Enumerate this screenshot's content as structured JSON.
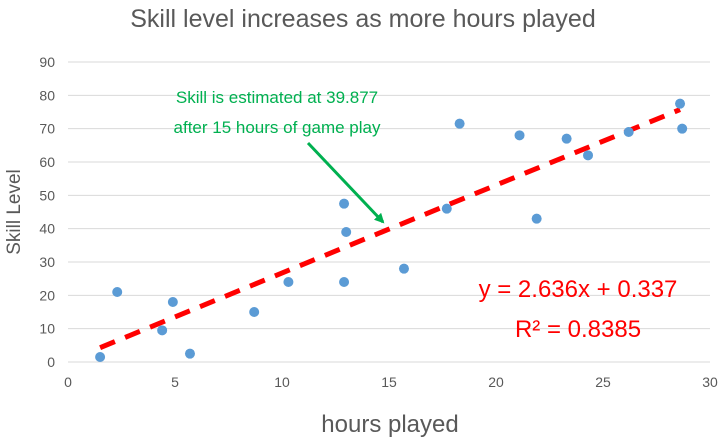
{
  "chart_data": {
    "type": "scatter",
    "title": "Skill level increases as more hours played",
    "xlabel": "hours played",
    "ylabel": "Skill Level",
    "xlim": [
      0,
      30
    ],
    "ylim": [
      0,
      90
    ],
    "x_ticks": [
      0,
      5,
      10,
      15,
      20,
      25,
      30
    ],
    "y_ticks": [
      0,
      10,
      20,
      30,
      40,
      50,
      60,
      70,
      80,
      90
    ],
    "grid": true,
    "series": [
      {
        "points": [
          {
            "x": 1.5,
            "y": 1.5
          },
          {
            "x": 2.3,
            "y": 21
          },
          {
            "x": 4.4,
            "y": 9.5
          },
          {
            "x": 4.9,
            "y": 18
          },
          {
            "x": 5.7,
            "y": 2.5
          },
          {
            "x": 8.7,
            "y": 15
          },
          {
            "x": 10.3,
            "y": 24
          },
          {
            "x": 12.9,
            "y": 47.5
          },
          {
            "x": 12.9,
            "y": 24
          },
          {
            "x": 13.0,
            "y": 39
          },
          {
            "x": 15.7,
            "y": 28
          },
          {
            "x": 17.7,
            "y": 46
          },
          {
            "x": 18.3,
            "y": 71.5
          },
          {
            "x": 21.1,
            "y": 68
          },
          {
            "x": 21.9,
            "y": 43
          },
          {
            "x": 23.3,
            "y": 67
          },
          {
            "x": 24.3,
            "y": 62
          },
          {
            "x": 26.2,
            "y": 69
          },
          {
            "x": 28.6,
            "y": 77.5
          },
          {
            "x": 28.7,
            "y": 70
          }
        ],
        "color": "#5b9bd5"
      }
    ],
    "trendline": {
      "slope": 2.636,
      "intercept": 0.337,
      "x_range": [
        1.5,
        28.6
      ],
      "style": "dashed",
      "color": "#ff0000",
      "equation": "y = 2.636x + 0.337",
      "r_squared": "R² = 0.8385"
    },
    "annotation": {
      "lines": [
        "Skill is estimated at 39.877",
        "after 15 hours of game play"
      ],
      "target": {
        "x": 15,
        "y": 39.877
      },
      "color": "#00b050"
    }
  }
}
